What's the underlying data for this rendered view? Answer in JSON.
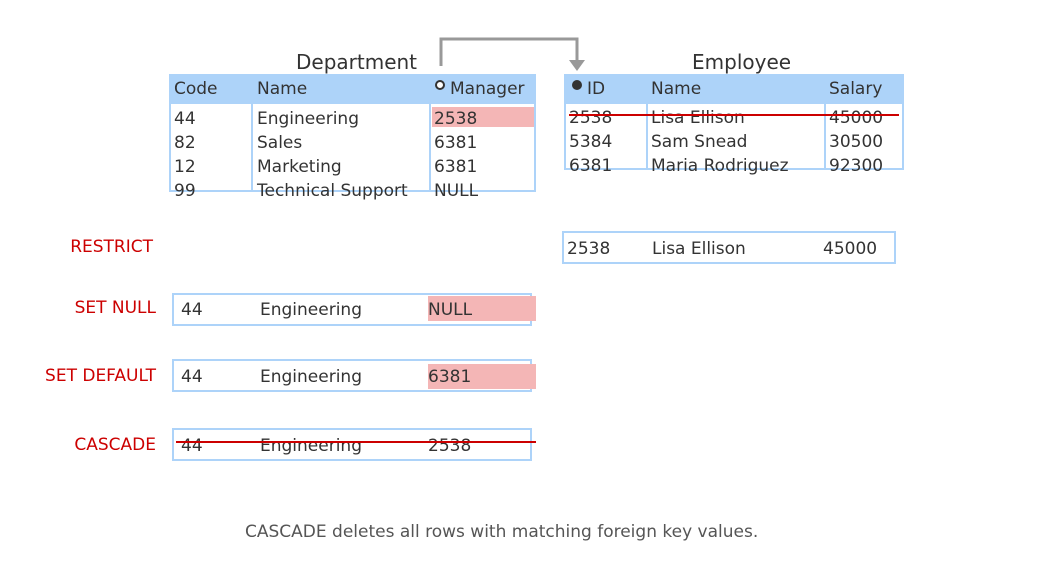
{
  "department": {
    "title": "Department",
    "headers": [
      "Code",
      "Name",
      "Manager"
    ],
    "rows": [
      [
        "44",
        "Engineering",
        "2538"
      ],
      [
        "82",
        "Sales",
        "6381"
      ],
      [
        "12",
        "Marketing",
        "6381"
      ],
      [
        "99",
        "Technical Support",
        "NULL"
      ]
    ]
  },
  "employee": {
    "title": "Employee",
    "headers": [
      "ID",
      "Name",
      "Salary"
    ],
    "rows": [
      [
        "2538",
        "Lisa Ellison",
        "45000"
      ],
      [
        "5384",
        "Sam Snead",
        "30500"
      ],
      [
        "6381",
        "Maria Rodriguez",
        "92300"
      ]
    ]
  },
  "actions": {
    "restrict": {
      "label": "RESTRICT",
      "row": [
        "2538",
        "Lisa Ellison",
        "45000"
      ]
    },
    "set_null": {
      "label": "SET NULL",
      "row": [
        "44",
        "Engineering",
        "NULL"
      ]
    },
    "set_default": {
      "label": "SET DEFAULT",
      "row": [
        "44",
        "Engineering",
        "6381"
      ]
    },
    "cascade": {
      "label": "CASCADE",
      "row": [
        "44",
        "Engineering",
        "2538"
      ]
    }
  },
  "caption": "CASCADE deletes all rows with matching foreign key values.",
  "colors": {
    "header": "#add3f9",
    "highlight": "#f4b6b6",
    "action_label": "#cc0000",
    "strike": "#cc0000",
    "arrow": "#999999"
  },
  "icons": {
    "primary_key": "filled-circle-icon",
    "foreign_key": "open-circle-icon"
  }
}
